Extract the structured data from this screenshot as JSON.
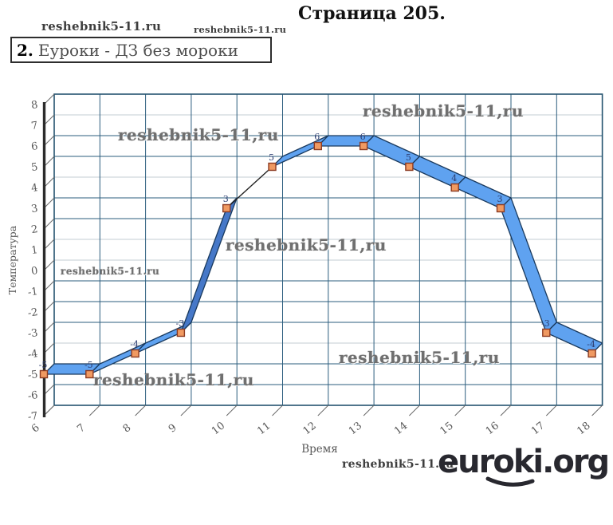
{
  "page": {
    "title": "Страница 205."
  },
  "task_box": {
    "number": "2.",
    "text": "Еуроки - ДЗ без мороки"
  },
  "watermarks": {
    "top1": "reshebnik5-11.ru",
    "top2": "reshebnik5-11.ru",
    "chart1": "reshebnik5-11,ru",
    "chart2": "reshebnik5-11,ru",
    "chart3": "reshebnik5-11,ru",
    "chart4": "reshebnik5-11.ru",
    "chart5": "reshebnik5-11,ru",
    "chart6": "reshebnik5-11,ru",
    "footer": "reshebnik5-11.ru"
  },
  "footer": {
    "logo": "euroki.org"
  },
  "chart_data": {
    "type": "line",
    "style": "3d-ribbon",
    "title": "",
    "xlabel": "Время",
    "ylabel": "Температура",
    "x": [
      6,
      7,
      8,
      9,
      10,
      11,
      12,
      13,
      14,
      15,
      16,
      17,
      18
    ],
    "values": [
      -5,
      -5,
      -4,
      -3,
      3,
      5,
      6,
      6,
      5,
      4,
      3,
      -3,
      -4
    ],
    "point_labels": [
      "-5",
      "-5",
      "-4",
      "-3",
      "3",
      "5",
      "6",
      "6",
      "5",
      "4",
      "3",
      "-3",
      "-4"
    ],
    "x_ticks": [
      6,
      7,
      8,
      9,
      10,
      11,
      12,
      13,
      14,
      15,
      16,
      17,
      18
    ],
    "y_ticks": [
      8,
      7,
      6,
      5,
      4,
      3,
      2,
      1,
      0,
      -1,
      -2,
      -3,
      -4,
      -5,
      -6,
      -7
    ],
    "xlim": [
      6,
      18
    ],
    "ylim": [
      -7,
      8
    ],
    "grid": "on",
    "legend": "none",
    "colors": {
      "ribbon_fill": "#5FA2F0",
      "ribbon_fill_dark": "#4678C8",
      "ribbon_stroke": "#1A3A5E",
      "thin_segment": "#222222",
      "marker_fill": "#F09A62",
      "marker_stroke": "#8C3B22",
      "grid_dark": "#2B5D7E",
      "grid_light": "#C3CCD3",
      "wall_border": "#24536F",
      "axis": "#2B2B2B",
      "tick": "#6a6a6a",
      "tick_text": "#585858",
      "point_label_text": "#2E3F72"
    }
  }
}
